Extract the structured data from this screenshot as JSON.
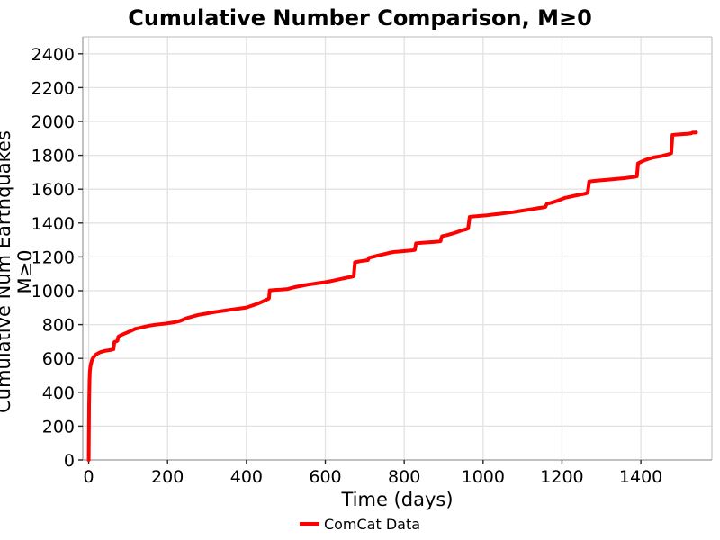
{
  "chart_data": {
    "type": "line",
    "title": "Cumulative Number Comparison, M≥0",
    "xlabel": "Time (days)",
    "ylabel": "Cumulative Num Earthquakes M≥0",
    "xlim": [
      -15,
      1580
    ],
    "ylim": [
      0,
      2500
    ],
    "xticks": [
      0,
      200,
      400,
      600,
      800,
      1000,
      1200,
      1400
    ],
    "yticks": [
      0,
      200,
      400,
      600,
      800,
      1000,
      1200,
      1400,
      1600,
      1800,
      2000,
      2200,
      2400
    ],
    "grid": true,
    "legend_position": "bottom-center",
    "colors": {
      "line": "#ff0000",
      "grid": "#e2e2e2",
      "spine_dark": "#9a9a9a",
      "spine_light": "#c6c6c6",
      "tick": "#262626",
      "text": "#000000",
      "background": "#ffffff"
    },
    "series": [
      {
        "name": "ComCat Data",
        "color": "#ff0000",
        "line_width": 4,
        "points": [
          [
            0,
            0
          ],
          [
            1,
            320
          ],
          [
            2,
            470
          ],
          [
            3,
            525
          ],
          [
            5,
            562
          ],
          [
            8,
            588
          ],
          [
            12,
            607
          ],
          [
            18,
            622
          ],
          [
            25,
            632
          ],
          [
            32,
            639
          ],
          [
            40,
            644
          ],
          [
            50,
            648
          ],
          [
            58,
            651
          ],
          [
            63,
            654
          ],
          [
            65,
            697
          ],
          [
            70,
            701
          ],
          [
            73,
            705
          ],
          [
            75,
            728
          ],
          [
            82,
            738
          ],
          [
            90,
            746
          ],
          [
            100,
            756
          ],
          [
            110,
            766
          ],
          [
            118,
            775
          ],
          [
            130,
            781
          ],
          [
            142,
            788
          ],
          [
            155,
            794
          ],
          [
            168,
            799
          ],
          [
            180,
            802
          ],
          [
            195,
            806
          ],
          [
            210,
            811
          ],
          [
            222,
            816
          ],
          [
            232,
            822
          ],
          [
            240,
            830
          ],
          [
            248,
            838
          ],
          [
            258,
            844
          ],
          [
            268,
            851
          ],
          [
            280,
            858
          ],
          [
            295,
            864
          ],
          [
            310,
            870
          ],
          [
            325,
            876
          ],
          [
            340,
            881
          ],
          [
            355,
            886
          ],
          [
            370,
            891
          ],
          [
            385,
            896
          ],
          [
            400,
            901
          ],
          [
            410,
            909
          ],
          [
            420,
            917
          ],
          [
            430,
            925
          ],
          [
            440,
            935
          ],
          [
            448,
            944
          ],
          [
            455,
            951
          ],
          [
            457,
            955
          ],
          [
            459,
            1002
          ],
          [
            472,
            1005
          ],
          [
            488,
            1007
          ],
          [
            505,
            1010
          ],
          [
            515,
            1017
          ],
          [
            528,
            1024
          ],
          [
            542,
            1030
          ],
          [
            556,
            1036
          ],
          [
            570,
            1041
          ],
          [
            585,
            1046
          ],
          [
            598,
            1050
          ],
          [
            612,
            1056
          ],
          [
            626,
            1063
          ],
          [
            640,
            1070
          ],
          [
            654,
            1077
          ],
          [
            666,
            1082
          ],
          [
            672,
            1086
          ],
          [
            675,
            1168
          ],
          [
            688,
            1174
          ],
          [
            700,
            1178
          ],
          [
            708,
            1181
          ],
          [
            711,
            1195
          ],
          [
            722,
            1201
          ],
          [
            735,
            1209
          ],
          [
            748,
            1216
          ],
          [
            762,
            1224
          ],
          [
            775,
            1229
          ],
          [
            790,
            1232
          ],
          [
            805,
            1235
          ],
          [
            818,
            1238
          ],
          [
            827,
            1241
          ],
          [
            830,
            1280
          ],
          [
            845,
            1283
          ],
          [
            862,
            1286
          ],
          [
            878,
            1289
          ],
          [
            892,
            1292
          ],
          [
            896,
            1322
          ],
          [
            908,
            1328
          ],
          [
            922,
            1337
          ],
          [
            935,
            1347
          ],
          [
            947,
            1357
          ],
          [
            957,
            1363
          ],
          [
            962,
            1368
          ],
          [
            966,
            1436
          ],
          [
            980,
            1440
          ],
          [
            995,
            1443
          ],
          [
            1010,
            1446
          ],
          [
            1025,
            1450
          ],
          [
            1042,
            1454
          ],
          [
            1058,
            1459
          ],
          [
            1075,
            1464
          ],
          [
            1092,
            1470
          ],
          [
            1108,
            1476
          ],
          [
            1122,
            1481
          ],
          [
            1138,
            1487
          ],
          [
            1152,
            1492
          ],
          [
            1158,
            1495
          ],
          [
            1162,
            1514
          ],
          [
            1172,
            1519
          ],
          [
            1185,
            1528
          ],
          [
            1198,
            1540
          ],
          [
            1208,
            1549
          ],
          [
            1220,
            1555
          ],
          [
            1232,
            1561
          ],
          [
            1245,
            1567
          ],
          [
            1258,
            1573
          ],
          [
            1265,
            1578
          ],
          [
            1269,
            1645
          ],
          [
            1282,
            1649
          ],
          [
            1298,
            1652
          ],
          [
            1315,
            1656
          ],
          [
            1330,
            1659
          ],
          [
            1345,
            1662
          ],
          [
            1358,
            1665
          ],
          [
            1372,
            1669
          ],
          [
            1385,
            1673
          ],
          [
            1390,
            1676
          ],
          [
            1393,
            1752
          ],
          [
            1402,
            1763
          ],
          [
            1412,
            1773
          ],
          [
            1422,
            1781
          ],
          [
            1432,
            1787
          ],
          [
            1443,
            1792
          ],
          [
            1455,
            1797
          ],
          [
            1465,
            1803
          ],
          [
            1473,
            1808
          ],
          [
            1477,
            1812
          ],
          [
            1480,
            1920
          ],
          [
            1492,
            1923
          ],
          [
            1505,
            1925
          ],
          [
            1518,
            1927
          ],
          [
            1527,
            1929
          ],
          [
            1531,
            1934
          ],
          [
            1540,
            1935
          ]
        ]
      }
    ]
  }
}
